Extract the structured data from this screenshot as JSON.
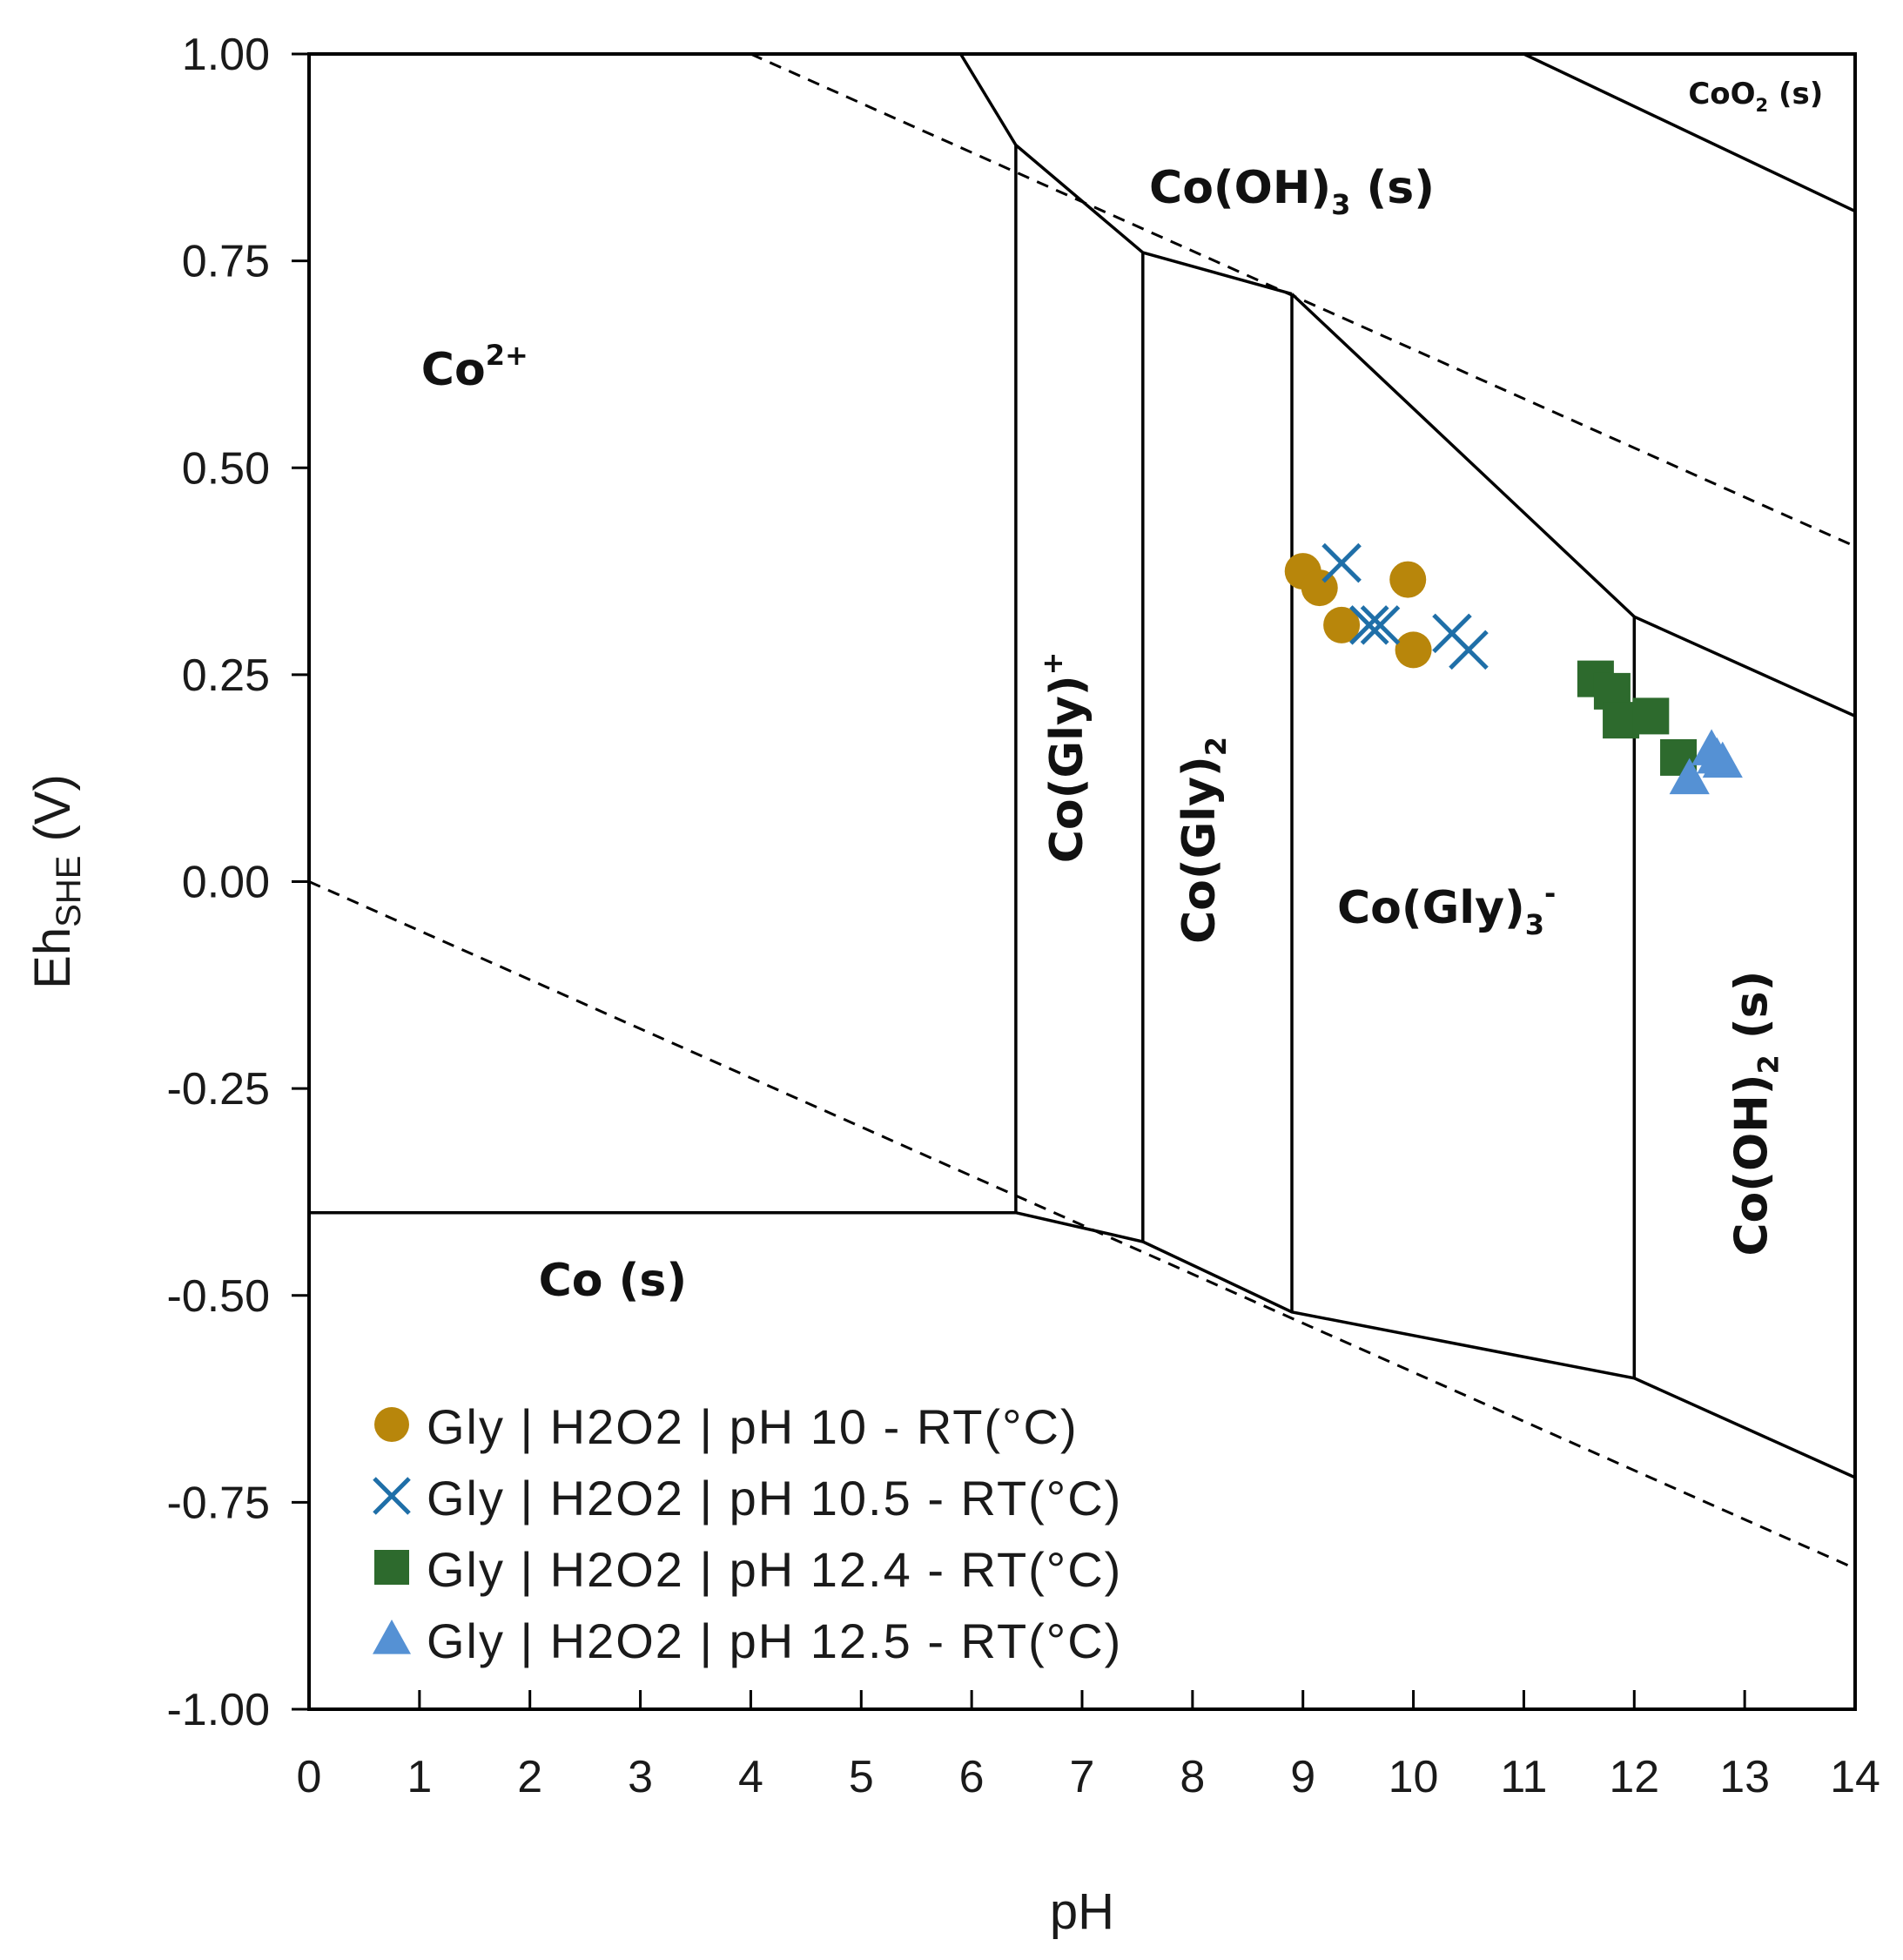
{
  "chart_data": {
    "type": "scatter",
    "title": "",
    "xlabel": "pH",
    "ylabel_main": "Eh",
    "ylabel_sub": "SHE",
    "ylabel_unit": " (V)",
    "xlim": [
      0,
      14
    ],
    "ylim": [
      -1.0,
      1.0
    ],
    "xticks": [
      0,
      1,
      2,
      3,
      4,
      5,
      6,
      7,
      8,
      9,
      10,
      11,
      12,
      13,
      14
    ],
    "yticks": [
      1.0,
      0.75,
      0.5,
      0.25,
      0.0,
      -0.25,
      -0.5,
      -0.75,
      -1.0
    ],
    "ytick_labels": [
      "1.00",
      "0.75",
      "0.50",
      "0.25",
      "0.00",
      "-0.25",
      "-0.50",
      "-0.75",
      "-1.00"
    ],
    "boundaries": [
      {
        "name": "co2plus-cooh3",
        "points": [
          [
            5.9,
            1.0
          ],
          [
            6.4,
            0.89
          ],
          [
            7.55,
            0.76
          ],
          [
            8.9,
            0.71
          ]
        ]
      },
      {
        "name": "cooh3-coGly3",
        "points": [
          [
            8.9,
            0.71
          ],
          [
            12.0,
            0.32
          ],
          [
            14,
            0.2
          ]
        ]
      },
      {
        "name": "cooh3-coo2",
        "points": [
          [
            11.0,
            1.0
          ],
          [
            14,
            0.81
          ]
        ]
      },
      {
        "name": "co-solid-top",
        "points": [
          [
            0,
            -0.4
          ],
          [
            6.4,
            -0.4
          ],
          [
            7.55,
            -0.435
          ],
          [
            8.9,
            -0.52
          ],
          [
            12.0,
            -0.6
          ],
          [
            14,
            -0.72
          ]
        ]
      },
      {
        "name": "co2plus-coGly-plus",
        "points": [
          [
            6.4,
            0.89
          ],
          [
            6.4,
            -0.4
          ]
        ]
      },
      {
        "name": "coGly-plus-coGly2",
        "points": [
          [
            7.55,
            0.76
          ],
          [
            7.55,
            -0.435
          ]
        ]
      },
      {
        "name": "coGly2-coGly3",
        "points": [
          [
            8.9,
            0.71
          ],
          [
            8.9,
            -0.52
          ]
        ]
      },
      {
        "name": "coGly3-cooh2",
        "points": [
          [
            12.0,
            0.32
          ],
          [
            12.0,
            -0.6
          ]
        ]
      }
    ],
    "water_lines": [
      {
        "name": "oxygen-line",
        "points": [
          [
            4.0,
            1.0
          ],
          [
            14,
            0.405
          ]
        ]
      },
      {
        "name": "hydrogen-line",
        "points": [
          [
            0,
            0.0
          ],
          [
            14,
            -0.83
          ]
        ]
      }
    ],
    "regions": [
      {
        "name": "co2plus",
        "base": "Co",
        "sup": "2+",
        "sub": "",
        "tail": "",
        "x": 1.5,
        "y": 0.6,
        "rotate": 0,
        "size": 52
      },
      {
        "name": "cooh3",
        "base": "Co(OH)",
        "sup": "",
        "sub": "3",
        "tail": " (s)",
        "x": 8.9,
        "y": 0.82,
        "rotate": 0,
        "size": 52
      },
      {
        "name": "coo2",
        "base": "CoO",
        "sup": "",
        "sub": "2",
        "tail": " (s)",
        "x": 13.1,
        "y": 0.94,
        "rotate": 0,
        "size": 34
      },
      {
        "name": "co-solid",
        "base": "Co (s)",
        "sup": "",
        "sub": "",
        "tail": "",
        "x": 2.75,
        "y": -0.5,
        "rotate": 0,
        "size": 52
      },
      {
        "name": "coGly-plus",
        "base": "Co(Gly)",
        "sup": "+",
        "sub": "",
        "tail": "",
        "x": 7.0,
        "y": 0.15,
        "rotate": -90,
        "size": 52
      },
      {
        "name": "coGly2",
        "base": "Co(Gly)",
        "sup": "",
        "sub": "2",
        "tail": "",
        "x": 8.2,
        "y": 0.05,
        "rotate": -90,
        "size": 52
      },
      {
        "name": "coGly3-minus",
        "base": "Co(Gly)",
        "sup": "-",
        "sub": "3",
        "tail": "",
        "x": 10.3,
        "y": -0.05,
        "rotate": 0,
        "size": 52
      },
      {
        "name": "cooh2",
        "base": "Co(OH)",
        "sup": "",
        "sub": "2",
        "tail": " (s)",
        "x": 13.2,
        "y": -0.28,
        "rotate": -90,
        "size": 52
      }
    ],
    "series": [
      {
        "name": "Gly | H2O2 | pH 10 - RT(°C)",
        "marker": "circle",
        "color": "#b8860b",
        "points": [
          [
            9.0,
            0.375
          ],
          [
            9.15,
            0.355
          ],
          [
            9.35,
            0.31
          ],
          [
            9.95,
            0.365
          ],
          [
            10.0,
            0.28
          ]
        ]
      },
      {
        "name": "Gly | H2O2 | pH 10.5 - RT(°C)",
        "marker": "x",
        "color": "#1f6fa8",
        "points": [
          [
            9.35,
            0.385
          ],
          [
            9.6,
            0.31
          ],
          [
            9.7,
            0.31
          ],
          [
            10.35,
            0.3
          ],
          [
            10.5,
            0.28
          ]
        ]
      },
      {
        "name": "Gly | H2O2 | pH 12.4 - RT(°C)",
        "marker": "square",
        "color": "#2d6a2d",
        "points": [
          [
            11.65,
            0.245
          ],
          [
            11.8,
            0.23
          ],
          [
            11.88,
            0.195
          ],
          [
            12.15,
            0.2
          ],
          [
            12.4,
            0.15
          ]
        ]
      },
      {
        "name": "Gly | H2O2 | pH 12.5 - RT(°C)",
        "marker": "triangle",
        "color": "#5591d4",
        "points": [
          [
            12.5,
            0.125
          ],
          [
            12.7,
            0.16
          ],
          [
            12.8,
            0.145
          ],
          [
            12.75,
            0.15
          ]
        ]
      }
    ],
    "legend_position": "bottom-left"
  }
}
